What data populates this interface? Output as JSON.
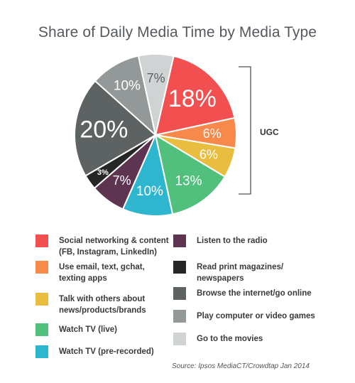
{
  "chart_data": {
    "type": "pie",
    "title": "Share of Daily Media Time by Media Type",
    "slices": [
      {
        "label": "Social networking & content\n(FB, Instagram, LinkedIn)",
        "value": 18,
        "display": "18%",
        "color": "#f25050"
      },
      {
        "label": "Use email, text, gchat,\ntexting apps",
        "value": 6,
        "display": "6%",
        "color": "#f7894a"
      },
      {
        "label": "Talk with others about\nnews/products/brands",
        "value": 6,
        "display": "6%",
        "color": "#e9bd3f"
      },
      {
        "label": "Watch TV (live)",
        "value": 13,
        "display": "13%",
        "color": "#52c07d"
      },
      {
        "label": "Watch TV (pre-recorded)",
        "value": 10,
        "display": "10%",
        "color": "#2fb6cf"
      },
      {
        "label": "Listen to the radio",
        "value": 7,
        "display": "7%",
        "color": "#5e3551"
      },
      {
        "label": "Read print magazines/\nnewspapers",
        "value": 3,
        "display": "3%",
        "color": "#262626"
      },
      {
        "label": "Browse the internet/go online",
        "value": 20,
        "display": "20%",
        "color": "#5d6262"
      },
      {
        "label": "Play computer or video games",
        "value": 10,
        "display": "10%",
        "color": "#939998"
      },
      {
        "label": "Go to the movies",
        "value": 7,
        "display": "7%",
        "color": "#d0d3d3"
      }
    ],
    "bracket_label": "UGC",
    "source": "Source: Ipsos MediaCT/Crowdtap Jan 2014"
  }
}
